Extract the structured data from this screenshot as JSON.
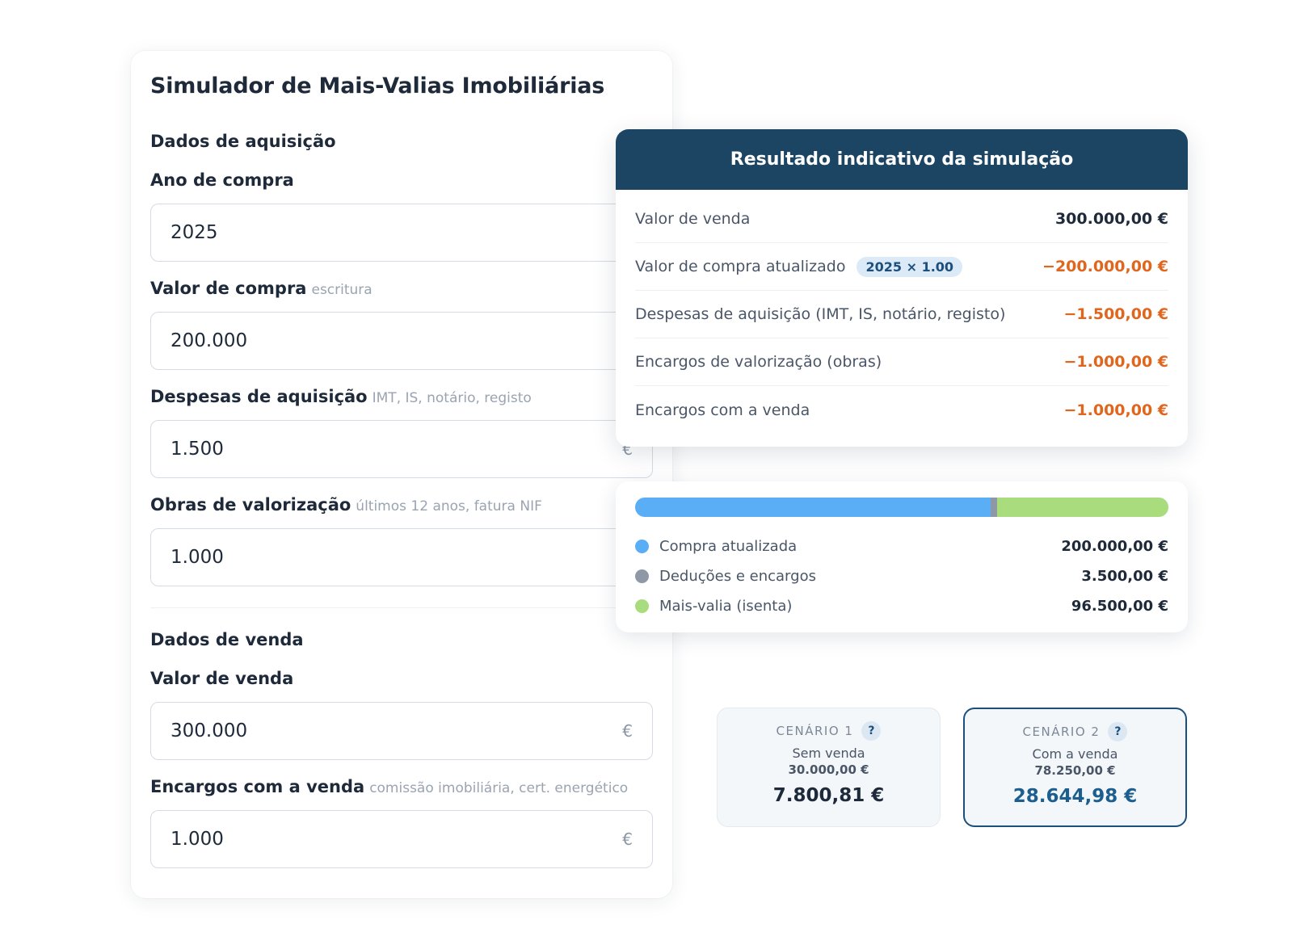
{
  "form": {
    "title": "Simulador de Mais-Valias Imobiliárias",
    "acquisition_section": "Dados de aquisição",
    "sale_section": "Dados de venda",
    "fields": {
      "ano_compra": {
        "label": "Ano de compra",
        "hint": "",
        "value": "2025",
        "currency": ""
      },
      "valor_compra": {
        "label": "Valor de compra",
        "hint": "escritura",
        "value": "200.000",
        "currency": ""
      },
      "despesas": {
        "label": "Despesas de aquisição",
        "hint": "IMT, IS, notário, registo",
        "value": "1.500",
        "currency": "€"
      },
      "obras": {
        "label": "Obras de valorização",
        "hint": "últimos 12 anos, fatura NIF",
        "value": "1.000",
        "currency": ""
      },
      "valor_venda": {
        "label": "Valor de venda",
        "hint": "",
        "value": "300.000",
        "currency": "€"
      },
      "encargos_venda": {
        "label": "Encargos com a venda",
        "hint": "comissão imobiliária, cert. energético",
        "value": "1.000",
        "currency": "€"
      }
    }
  },
  "results": {
    "title": "Resultado indicativo da simulação",
    "rows": [
      {
        "label": "Valor de venda",
        "badge": "",
        "value": "300.000,00 €"
      },
      {
        "label": "Valor de compra atualizado",
        "badge": "2025 × 1.00",
        "value": "−200.000,00 €"
      },
      {
        "label": "Despesas de aquisição (IMT, IS, notário, registo)",
        "badge": "",
        "value": "−1.500,00 €"
      },
      {
        "label": "Encargos de valorização (obras)",
        "badge": "",
        "value": "−1.000,00 €"
      },
      {
        "label": "Encargos com a venda",
        "badge": "",
        "value": "−1.000,00 €"
      }
    ]
  },
  "breakdown": {
    "colors": {
      "compra": "#5aaef5",
      "deducoes": "#8e98a6",
      "mais_valia": "#a8dc7c"
    },
    "legend": [
      {
        "label": "Compra atualizada",
        "value": "200.000,00 €",
        "amount": 200000
      },
      {
        "label": "Deduções e encargos",
        "value": "3.500,00 €",
        "amount": 3500
      },
      {
        "label": "Mais-valia (isenta)",
        "value": "96.500,00 €",
        "amount": 96500
      }
    ]
  },
  "scenarios": [
    {
      "tag": "CENÁRIO 1",
      "help": "?",
      "subtitle": "Sem venda",
      "base": "30.000,00 €",
      "result": "7.800,81 €"
    },
    {
      "tag": "CENÁRIO 2",
      "help": "?",
      "subtitle": "Com a venda",
      "base": "78.250,00 €",
      "result": "28.644,98 €"
    }
  ]
}
